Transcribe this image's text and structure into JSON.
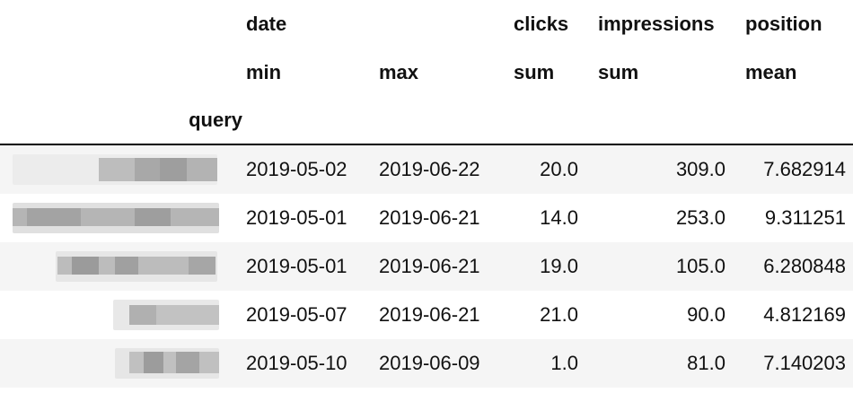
{
  "table": {
    "header_row_1": [
      "",
      "date",
      "",
      "clicks",
      "impressions",
      "position"
    ],
    "header_row_2": [
      "",
      "min",
      "max",
      "sum",
      "sum",
      "mean"
    ],
    "index_name": "query",
    "rows": [
      {
        "query_obscured": true,
        "date_min": "2019-05-02",
        "date_max": "2019-06-22",
        "clicks_sum": "20.0",
        "impressions_sum": "309.0",
        "position_mean": "7.682914"
      },
      {
        "query_obscured": true,
        "date_min": "2019-05-01",
        "date_max": "2019-06-21",
        "clicks_sum": "14.0",
        "impressions_sum": "253.0",
        "position_mean": "9.311251"
      },
      {
        "query_obscured": true,
        "date_min": "2019-05-01",
        "date_max": "2019-06-21",
        "clicks_sum": "19.0",
        "impressions_sum": "105.0",
        "position_mean": "6.280848"
      },
      {
        "query_obscured": true,
        "date_min": "2019-05-07",
        "date_max": "2019-06-21",
        "clicks_sum": "21.0",
        "impressions_sum": "90.0",
        "position_mean": "4.812169"
      },
      {
        "query_obscured": true,
        "date_min": "2019-05-10",
        "date_max": "2019-06-09",
        "clicks_sum": "1.0",
        "impressions_sum": "81.0",
        "position_mean": "7.140203"
      }
    ]
  },
  "colors": {
    "text": "#111111",
    "stripe": "#f5f5f5",
    "rule": "#000000",
    "pixel_light": "#d9d9d9",
    "pixel_dark": "#9e9e9e"
  }
}
